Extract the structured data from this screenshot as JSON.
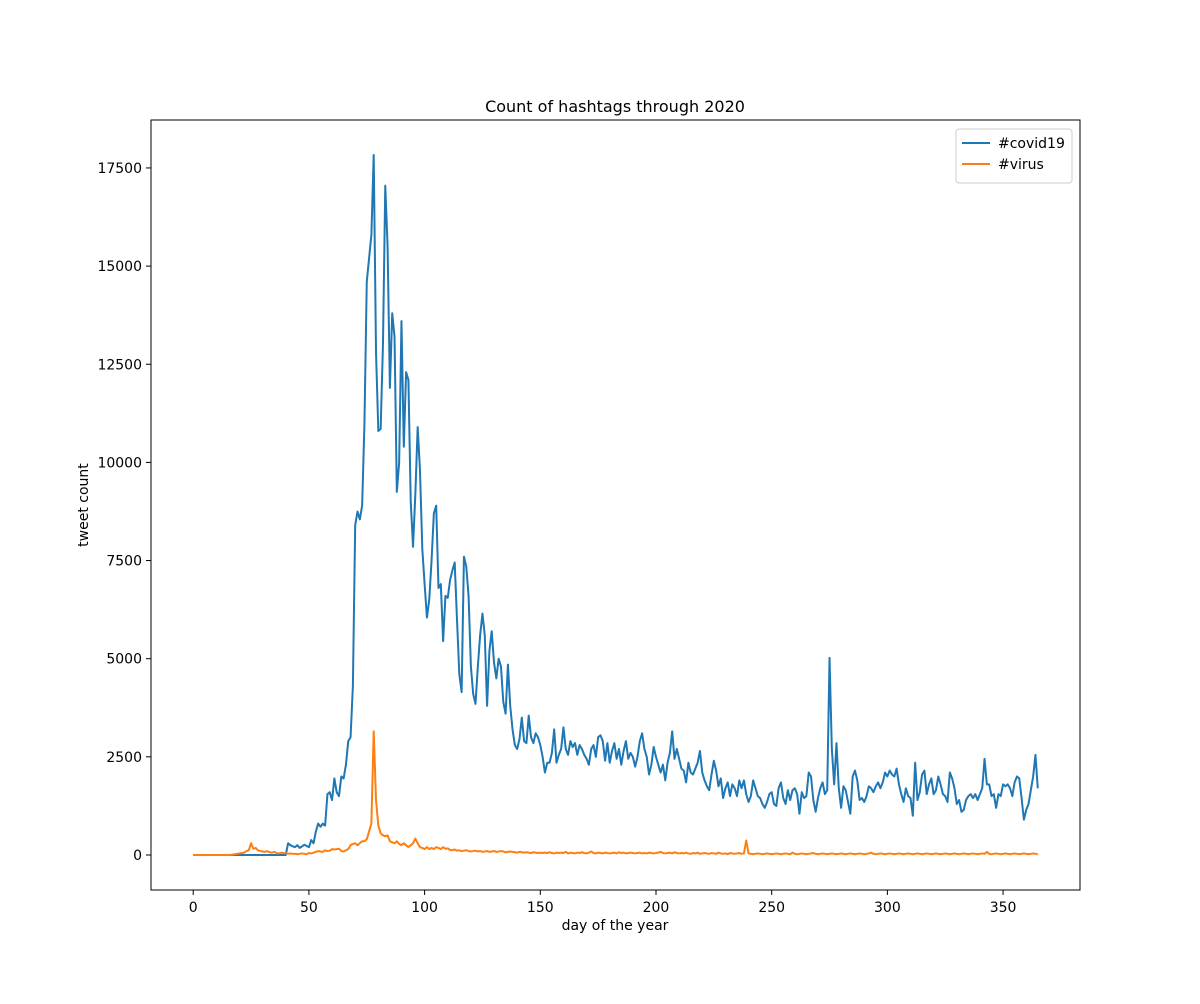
{
  "chart_data": {
    "type": "line",
    "title": "Count of hashtags through 2020",
    "xlabel": "day of the year",
    "ylabel": "tweet count",
    "x": [
      0,
      1,
      2,
      3,
      4,
      5,
      6,
      7,
      8,
      9,
      10,
      11,
      12,
      13,
      14,
      15,
      16,
      17,
      18,
      19,
      20,
      21,
      22,
      23,
      24,
      25,
      26,
      27,
      28,
      29,
      30,
      31,
      32,
      33,
      34,
      35,
      36,
      37,
      38,
      39,
      40,
      41,
      42,
      43,
      44,
      45,
      46,
      47,
      48,
      49,
      50,
      51,
      52,
      53,
      54,
      55,
      56,
      57,
      58,
      59,
      60,
      61,
      62,
      63,
      64,
      65,
      66,
      67,
      68,
      69,
      70,
      71,
      72,
      73,
      74,
      75,
      76,
      77,
      78,
      79,
      80,
      81,
      82,
      83,
      84,
      85,
      86,
      87,
      88,
      89,
      90,
      91,
      92,
      93,
      94,
      95,
      96,
      97,
      98,
      99,
      100,
      101,
      102,
      103,
      104,
      105,
      106,
      107,
      108,
      109,
      110,
      111,
      112,
      113,
      114,
      115,
      116,
      117,
      118,
      119,
      120,
      121,
      122,
      123,
      124,
      125,
      126,
      127,
      128,
      129,
      130,
      131,
      132,
      133,
      134,
      135,
      136,
      137,
      138,
      139,
      140,
      141,
      142,
      143,
      144,
      145,
      146,
      147,
      148,
      149,
      150,
      151,
      152,
      153,
      154,
      155,
      156,
      157,
      158,
      159,
      160,
      161,
      162,
      163,
      164,
      165,
      166,
      167,
      168,
      169,
      170,
      171,
      172,
      173,
      174,
      175,
      176,
      177,
      178,
      179,
      180,
      181,
      182,
      183,
      184,
      185,
      186,
      187,
      188,
      189,
      190,
      191,
      192,
      193,
      194,
      195,
      196,
      197,
      198,
      199,
      200,
      201,
      202,
      203,
      204,
      205,
      206,
      207,
      208,
      209,
      210,
      211,
      212,
      213,
      214,
      215,
      216,
      217,
      218,
      219,
      220,
      221,
      222,
      223,
      224,
      225,
      226,
      227,
      228,
      229,
      230,
      231,
      232,
      233,
      234,
      235,
      236,
      237,
      238,
      239,
      240,
      241,
      242,
      243,
      244,
      245,
      246,
      247,
      248,
      249,
      250,
      251,
      252,
      253,
      254,
      255,
      256,
      257,
      258,
      259,
      260,
      261,
      262,
      263,
      264,
      265,
      266,
      267,
      268,
      269,
      270,
      271,
      272,
      273,
      274,
      275,
      276,
      277,
      278,
      279,
      280,
      281,
      282,
      283,
      284,
      285,
      286,
      287,
      288,
      289,
      290,
      291,
      292,
      293,
      294,
      295,
      296,
      297,
      298,
      299,
      300,
      301,
      302,
      303,
      304,
      305,
      306,
      307,
      308,
      309,
      310,
      311,
      312,
      313,
      314,
      315,
      316,
      317,
      318,
      319,
      320,
      321,
      322,
      323,
      324,
      325,
      326,
      327,
      328,
      329,
      330,
      331,
      332,
      333,
      334,
      335,
      336,
      337,
      338,
      339,
      340,
      341,
      342,
      343,
      344,
      345,
      346,
      347,
      348,
      349,
      350,
      351,
      352,
      353,
      354,
      355,
      356,
      357,
      358,
      359,
      360,
      361,
      362,
      363,
      364,
      365
    ],
    "series": [
      {
        "name": "#covid19",
        "color": "#1f77b4",
        "values": [
          0,
          0,
          0,
          0,
          0,
          0,
          0,
          0,
          0,
          0,
          0,
          0,
          0,
          0,
          0,
          0,
          0,
          0,
          0,
          0,
          0,
          0,
          0,
          0,
          0,
          0,
          0,
          0,
          0,
          0,
          0,
          0,
          0,
          0,
          0,
          0,
          0,
          0,
          0,
          0,
          0,
          300,
          250,
          220,
          200,
          250,
          180,
          220,
          260,
          230,
          200,
          380,
          300,
          600,
          800,
          720,
          800,
          750,
          1550,
          1600,
          1400,
          1950,
          1600,
          1500,
          2000,
          1950,
          2300,
          2900,
          3000,
          4300,
          8400,
          8750,
          8550,
          8900,
          11000,
          14600,
          15200,
          15800,
          17830,
          12800,
          10800,
          10850,
          13000,
          17050,
          15500,
          11900,
          13800,
          13200,
          9250,
          10000,
          13600,
          10400,
          12300,
          12100,
          9000,
          7850,
          9200,
          10900,
          9800,
          7800,
          6900,
          6050,
          6500,
          7500,
          8700,
          8900,
          6800,
          6900,
          5450,
          6600,
          6550,
          7000,
          7250,
          7450,
          6000,
          4600,
          4150,
          7600,
          7350,
          6600,
          4800,
          4100,
          3850,
          4800,
          5600,
          6150,
          5600,
          3800,
          5200,
          5700,
          4900,
          4500,
          5000,
          4800,
          3900,
          3600,
          4850,
          3800,
          3200,
          2800,
          2700,
          2950,
          3500,
          2900,
          2850,
          3550,
          3000,
          2850,
          3100,
          3000,
          2800,
          2500,
          2100,
          2350,
          2350,
          2600,
          3200,
          2350,
          2550,
          2700,
          3250,
          2700,
          2550,
          2900,
          2750,
          2850,
          2550,
          2800,
          2700,
          2550,
          2450,
          2300,
          2700,
          2800,
          2500,
          3000,
          3050,
          2900,
          2400,
          2850,
          2350,
          2650,
          2850,
          2450,
          2700,
          2300,
          2650,
          2900,
          2450,
          2600,
          2500,
          2250,
          2500,
          2900,
          3100,
          2700,
          2500,
          2050,
          2300,
          2750,
          2500,
          2300,
          2100,
          2300,
          1900,
          2350,
          2600,
          3150,
          2450,
          2700,
          2450,
          2200,
          2150,
          1850,
          2350,
          2100,
          2050,
          2200,
          2350,
          2650,
          2100,
          1900,
          1750,
          1650,
          2050,
          2400,
          2150,
          1750,
          1950,
          1450,
          1700,
          1850,
          1500,
          1800,
          1700,
          1500,
          1900,
          1700,
          1900,
          1550,
          1350,
          1500,
          1900,
          1700,
          1500,
          1450,
          1300,
          1200,
          1350,
          1550,
          1600,
          1300,
          1250,
          1700,
          1850,
          1450,
          1300,
          1650,
          1400,
          1650,
          1700,
          1550,
          1050,
          1600,
          1450,
          1500,
          2100,
          2000,
          1400,
          1100,
          1450,
          1700,
          1850,
          1550,
          1650,
          5020,
          2700,
          1800,
          2850,
          1700,
          1200,
          1750,
          1650,
          1350,
          1050,
          2000,
          2150,
          1900,
          1400,
          1450,
          1350,
          1500,
          1750,
          1700,
          1600,
          1750,
          1850,
          1700,
          1850,
          2100,
          2000,
          2150,
          2050,
          2000,
          2200,
          1800,
          1550,
          1350,
          1700,
          1500,
          1450,
          1000,
          2350,
          1400,
          1600,
          2050,
          2150,
          1550,
          1800,
          1950,
          1550,
          1650,
          2000,
          1800,
          1550,
          1500,
          1350,
          2100,
          1950,
          1700,
          1300,
          1400,
          1100,
          1150,
          1400,
          1500,
          1550,
          1450,
          1550,
          1400,
          1550,
          1700,
          2450,
          1800,
          1800,
          1500,
          1550,
          1200,
          1550,
          1500,
          1800,
          1750,
          1800,
          1700,
          1500,
          1850,
          2000,
          1950,
          1450,
          900,
          1150,
          1300,
          1650,
          2000,
          2550,
          1700
        ]
      },
      {
        "name": "#virus",
        "color": "#ff7f0e",
        "values": [
          0,
          0,
          0,
          0,
          0,
          0,
          0,
          0,
          0,
          0,
          0,
          0,
          0,
          0,
          0,
          0,
          0,
          10,
          20,
          30,
          40,
          50,
          60,
          100,
          120,
          300,
          160,
          180,
          120,
          100,
          90,
          80,
          100,
          70,
          60,
          80,
          50,
          40,
          60,
          50,
          40,
          30,
          40,
          30,
          30,
          20,
          30,
          40,
          30,
          20,
          50,
          40,
          60,
          80,
          100,
          90,
          80,
          120,
          100,
          110,
          150,
          140,
          150,
          160,
          100,
          90,
          120,
          150,
          250,
          280,
          300,
          250,
          300,
          350,
          350,
          400,
          600,
          800,
          3150,
          1400,
          750,
          550,
          500,
          480,
          500,
          350,
          320,
          300,
          350,
          280,
          250,
          300,
          250,
          200,
          250,
          300,
          420,
          300,
          200,
          180,
          150,
          200,
          150,
          180,
          150,
          200,
          180,
          150,
          200,
          160,
          170,
          130,
          120,
          140,
          110,
          120,
          100,
          110,
          120,
          100,
          90,
          100,
          110,
          90,
          100,
          80,
          90,
          100,
          80,
          90,
          100,
          80,
          90,
          100,
          90,
          70,
          80,
          90,
          80,
          70,
          60,
          80,
          70,
          60,
          70,
          60,
          50,
          70,
          60,
          50,
          60,
          50,
          60,
          50,
          70,
          50,
          40,
          60,
          50,
          60,
          50,
          80,
          40,
          60,
          50,
          40,
          60,
          50,
          70,
          50,
          40,
          60,
          90,
          50,
          40,
          60,
          50,
          40,
          60,
          50,
          40,
          50,
          60,
          40,
          70,
          50,
          60,
          40,
          50,
          60,
          50,
          40,
          50,
          60,
          40,
          50,
          40,
          60,
          50,
          40,
          50,
          60,
          80,
          50,
          40,
          50,
          60,
          40,
          70,
          50,
          40,
          50,
          40,
          60,
          40,
          30,
          50,
          40,
          60,
          30,
          40,
          50,
          40,
          30,
          50,
          40,
          30,
          60,
          40,
          30,
          40,
          20,
          50,
          40,
          30,
          40,
          50,
          30,
          40,
          370,
          40,
          30,
          20,
          30,
          40,
          30,
          20,
          30,
          40,
          30,
          20,
          30,
          40,
          30,
          20,
          30,
          40,
          30,
          20,
          60,
          30,
          20,
          30,
          40,
          30,
          20,
          30,
          40,
          50,
          30,
          20,
          30,
          40,
          30,
          20,
          30,
          40,
          30,
          20,
          30,
          40,
          30,
          20,
          30,
          40,
          30,
          20,
          30,
          40,
          30,
          20,
          30,
          40,
          60,
          30,
          20,
          30,
          40,
          30,
          20,
          30,
          40,
          30,
          20,
          30,
          40,
          30,
          20,
          30,
          40,
          30,
          20,
          30,
          40,
          30,
          20,
          30,
          40,
          30,
          20,
          30,
          40,
          30,
          20,
          30,
          40,
          30,
          20,
          30,
          40,
          30,
          20,
          30,
          40,
          30,
          20,
          30,
          40,
          30,
          20,
          30,
          40,
          30,
          80,
          30,
          20,
          30,
          40,
          30,
          20,
          30,
          40,
          30,
          20,
          30,
          40,
          30,
          20,
          30,
          40,
          30,
          20,
          30,
          40,
          30,
          20
        ]
      }
    ],
    "xlim": [
      -18.25,
      383.25
    ],
    "xticks": [
      0,
      50,
      100,
      150,
      200,
      250,
      300,
      350
    ],
    "ylim": [
      -891.5,
      18721.5
    ],
    "yticks": [
      0,
      2500,
      5000,
      7500,
      10000,
      12500,
      15000,
      17500
    ],
    "legend": "upper right",
    "grid": false
  }
}
